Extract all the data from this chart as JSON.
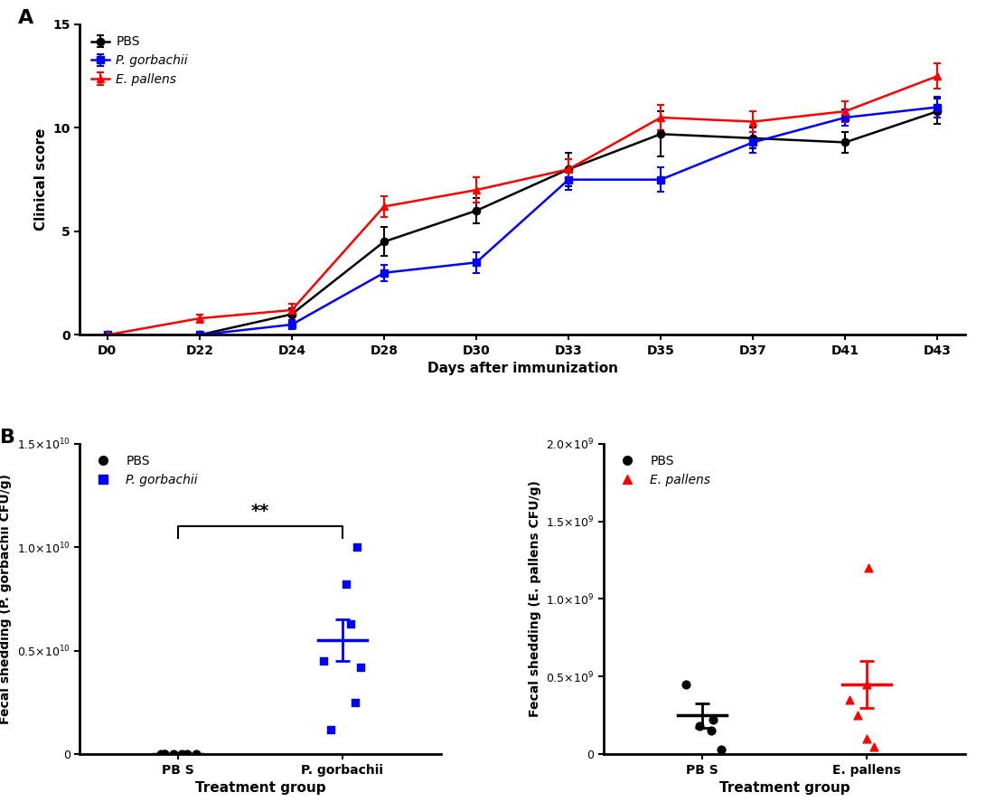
{
  "panel_A": {
    "days": [
      0,
      22,
      24,
      28,
      30,
      33,
      35,
      37,
      41,
      43
    ],
    "PBS": {
      "mean": [
        0.0,
        0.0,
        1.0,
        4.5,
        6.0,
        8.0,
        9.7,
        9.5,
        9.3,
        10.8
      ],
      "sem": [
        0.0,
        0.0,
        0.3,
        0.7,
        0.6,
        0.8,
        1.1,
        0.5,
        0.5,
        0.6
      ],
      "color": "#000000",
      "marker": "o",
      "label": "PBS"
    },
    "Pgorbachii": {
      "mean": [
        0.0,
        0.0,
        0.5,
        3.0,
        3.5,
        7.5,
        7.5,
        9.3,
        10.5,
        11.0
      ],
      "sem": [
        0.0,
        0.0,
        0.2,
        0.4,
        0.5,
        0.5,
        0.6,
        0.5,
        0.4,
        0.5
      ],
      "color": "#0000FF",
      "marker": "s",
      "label": "P. gorbachii"
    },
    "Epallens": {
      "mean": [
        0.0,
        0.8,
        1.2,
        6.2,
        7.0,
        8.0,
        10.5,
        10.3,
        10.8,
        12.5
      ],
      "sem": [
        0.0,
        0.2,
        0.3,
        0.5,
        0.6,
        0.5,
        0.6,
        0.5,
        0.5,
        0.6
      ],
      "color": "#FF0000",
      "marker": "^",
      "label": "E. pallens"
    },
    "xlabel": "Days after immunization",
    "ylabel": "Clinical score",
    "ylim": [
      0,
      15
    ],
    "yticks": [
      0,
      5,
      10,
      15
    ]
  },
  "panel_B1": {
    "PBS_points": [
      20000000.0,
      10000000.0,
      15000000.0,
      5000000.0,
      30000000.0,
      10000000.0,
      8000000.0
    ],
    "Pgorbachii_points": [
      10000000000.0,
      8200000000.0,
      6300000000.0,
      4500000000.0,
      4200000000.0,
      2500000000.0,
      1200000000.0
    ],
    "PBS_mean": 12000000.0,
    "PBS_sem": 5000000.0,
    "Pgorbachii_mean": 5500000000.0,
    "Pgorbachii_sem": 1000000000.0,
    "ylim": [
      0,
      15000000000.0
    ],
    "yticks": [
      0,
      5000000000.0,
      10000000000.0,
      15000000000.0
    ],
    "ylabel": "Fecal shedding (P. gorbachii CFU/g)",
    "xlabel": "Treatment group",
    "xtick_labels": [
      "PB S",
      "P. gorbachii"
    ],
    "PBS_color": "#000000",
    "Pg_color": "#0000FF",
    "sig_label": "**"
  },
  "panel_B2": {
    "PBS_points": [
      450000000.0,
      220000000.0,
      180000000.0,
      150000000.0,
      30000000.0
    ],
    "Epallens_points": [
      1200000000.0,
      450000000.0,
      350000000.0,
      250000000.0,
      100000000.0,
      50000000.0
    ],
    "PBS_mean": 250000000.0,
    "PBS_sem": 80000000.0,
    "Epallens_mean": 450000000.0,
    "Epallens_sem": 150000000.0,
    "ylim": [
      0,
      2000000000.0
    ],
    "yticks": [
      0,
      500000000.0,
      1000000000.0,
      1500000000.0,
      2000000000.0
    ],
    "ylabel": "Fecal shedding (E. pallens CFU/g)",
    "xlabel": "Treatment group",
    "xtick_labels": [
      "PB S",
      "E. pallens"
    ],
    "PBS_color": "#000000",
    "Ep_color": "#FF0000"
  }
}
